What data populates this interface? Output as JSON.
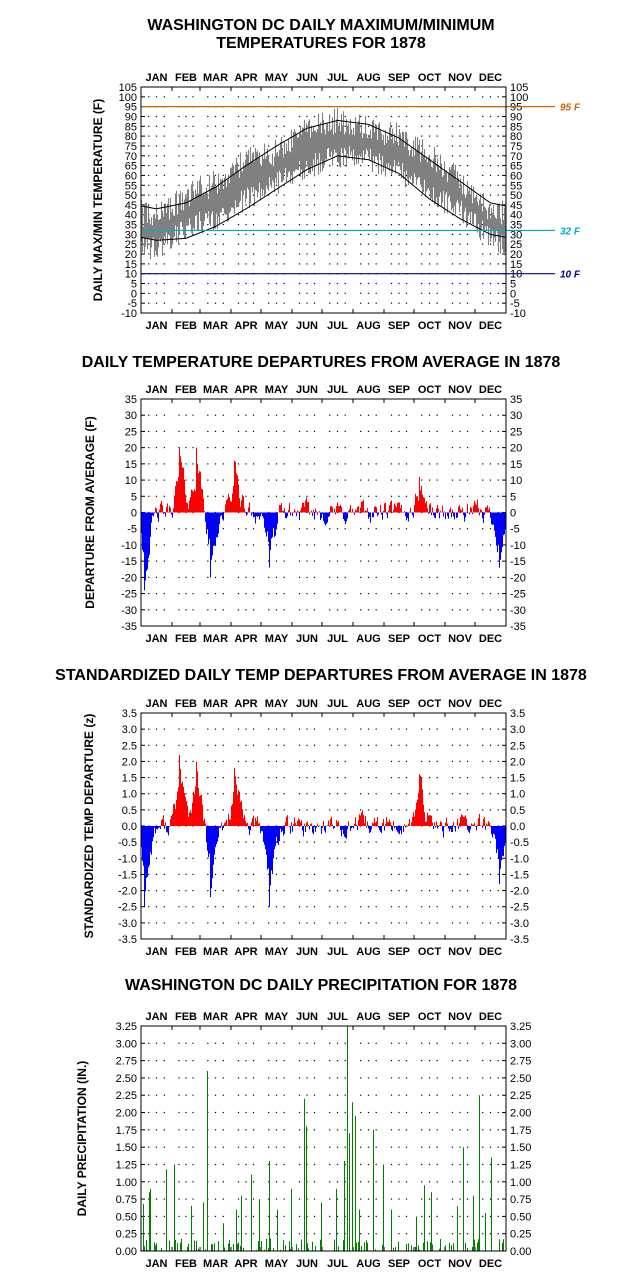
{
  "months": [
    "JAN",
    "FEB",
    "MAR",
    "APR",
    "MAY",
    "JUN",
    "JUL",
    "AUG",
    "SEP",
    "OCT",
    "NOV",
    "DEC"
  ],
  "month_lengths": [
    31,
    28,
    31,
    30,
    31,
    30,
    31,
    31,
    30,
    31,
    30,
    31
  ],
  "colors": {
    "actual": "#808080",
    "normal": "#000000",
    "above": "#ff0000",
    "below": "#0000ff",
    "precip": "#008000",
    "line95": "#cc6600",
    "line32": "#00aacc",
    "line10": "#000099"
  },
  "chart_data": [
    {
      "type": "line",
      "title": [
        "WASHINGTON DC DAILY MAXIMUM/MINIMUM",
        "TEMPERATURES FOR 1878"
      ],
      "ylabel": "DAILY MAX/MIN TEMPERATURE (F)",
      "ylim": [
        -10,
        105
      ],
      "yticks": [
        -10,
        -5,
        0,
        5,
        10,
        15,
        20,
        25,
        30,
        35,
        40,
        45,
        50,
        55,
        60,
        65,
        70,
        75,
        80,
        85,
        90,
        95,
        100,
        105
      ],
      "grid": true,
      "reference_lines": [
        {
          "value": 95,
          "label": "95 F"
        },
        {
          "value": 32,
          "label": "32 F"
        },
        {
          "value": 10,
          "label": "10 F"
        }
      ],
      "series": [
        {
          "kind": "normal high, monthly points (mid-month, smoothed)",
          "monthly": [
            43,
            46,
            54,
            65,
            75,
            84,
            88,
            86,
            79,
            68,
            57,
            46
          ]
        },
        {
          "kind": "normal low, monthly points (mid-month, smoothed)",
          "monthly": [
            27,
            28,
            34,
            43,
            53,
            63,
            70,
            68,
            61,
            48,
            38,
            30
          ]
        },
        {
          "kind": "observed daily range, approximate monthly means",
          "monthly_high": [
            40,
            50,
            56,
            68,
            72,
            84,
            88,
            84,
            80,
            70,
            58,
            42
          ],
          "monthly_low": [
            22,
            34,
            38,
            48,
            56,
            64,
            70,
            68,
            62,
            50,
            42,
            28
          ]
        }
      ]
    },
    {
      "type": "bar",
      "title": "DAILY TEMPERATURE DEPARTURES FROM AVERAGE IN 1878",
      "ylabel": "DEPARTURE FROM AVERAGE (F)",
      "ylim": [
        -35,
        35
      ],
      "yticks": [
        -35,
        -30,
        -25,
        -20,
        -15,
        -10,
        -5,
        0,
        5,
        10,
        15,
        20,
        25,
        30,
        35
      ],
      "grid": true,
      "notable_days": [
        {
          "day": 3,
          "value": -24
        },
        {
          "day": 38,
          "value": 20
        },
        {
          "day": 55,
          "value": 20
        },
        {
          "day": 69,
          "value": -20
        },
        {
          "day": 93,
          "value": 16
        },
        {
          "day": 128,
          "value": -17
        },
        {
          "day": 278,
          "value": 11
        },
        {
          "day": 358,
          "value": -17
        }
      ]
    },
    {
      "type": "bar",
      "title": "STANDARDIZED DAILY TEMP DEPARTURES FROM AVERAGE IN 1878",
      "ylabel": "STANDARDIZED TEMP DEPARTURE (z)",
      "ylim": [
        -3.5,
        3.5
      ],
      "yticks": [
        -3.5,
        -3.0,
        -2.5,
        -2.0,
        -1.5,
        -1.0,
        -0.5,
        0.0,
        0.5,
        1.0,
        1.5,
        2.0,
        2.5,
        3.0,
        3.5
      ],
      "grid": true,
      "notable_days": [
        {
          "day": 3,
          "value": -2.5
        },
        {
          "day": 38,
          "value": 2.2
        },
        {
          "day": 55,
          "value": 2.0
        },
        {
          "day": 69,
          "value": -2.2
        },
        {
          "day": 93,
          "value": 1.8
        },
        {
          "day": 128,
          "value": -2.5
        },
        {
          "day": 278,
          "value": 1.6
        },
        {
          "day": 358,
          "value": -1.8
        }
      ]
    },
    {
      "type": "bar",
      "title": "WASHINGTON DC DAILY PRECIPITATION FOR 1878",
      "ylabel": "DAILY PRECIPITATION (IN.)",
      "ylim": [
        0,
        3.25
      ],
      "yticks": [
        0.0,
        0.25,
        0.5,
        0.75,
        1.0,
        1.25,
        1.5,
        1.75,
        2.0,
        2.25,
        2.5,
        2.75,
        3.0,
        3.25
      ],
      "grid": true,
      "notable_days": [
        {
          "day": 2,
          "value": 0.68
        },
        {
          "day": 8,
          "value": 0.85
        },
        {
          "day": 9,
          "value": 0.9
        },
        {
          "day": 25,
          "value": 1.18
        },
        {
          "day": 33,
          "value": 1.25
        },
        {
          "day": 50,
          "value": 0.65
        },
        {
          "day": 62,
          "value": 0.7
        },
        {
          "day": 66,
          "value": 2.6
        },
        {
          "day": 82,
          "value": 0.4
        },
        {
          "day": 95,
          "value": 0.6
        },
        {
          "day": 100,
          "value": 0.8
        },
        {
          "day": 110,
          "value": 1.1
        },
        {
          "day": 118,
          "value": 0.75
        },
        {
          "day": 128,
          "value": 1.3
        },
        {
          "day": 136,
          "value": 0.6
        },
        {
          "day": 150,
          "value": 0.9
        },
        {
          "day": 163,
          "value": 2.2
        },
        {
          "day": 165,
          "value": 1.8
        },
        {
          "day": 180,
          "value": 0.7
        },
        {
          "day": 195,
          "value": 0.9
        },
        {
          "day": 203,
          "value": 1.3
        },
        {
          "day": 206,
          "value": 3.25
        },
        {
          "day": 208,
          "value": 1.7
        },
        {
          "day": 211,
          "value": 2.15
        },
        {
          "day": 214,
          "value": 1.95
        },
        {
          "day": 218,
          "value": 0.6
        },
        {
          "day": 232,
          "value": 1.75
        },
        {
          "day": 242,
          "value": 1.25
        },
        {
          "day": 250,
          "value": 0.6
        },
        {
          "day": 275,
          "value": 0.5
        },
        {
          "day": 283,
          "value": 0.95
        },
        {
          "day": 290,
          "value": 0.85
        },
        {
          "day": 316,
          "value": 0.65
        },
        {
          "day": 322,
          "value": 1.5
        },
        {
          "day": 332,
          "value": 0.8
        },
        {
          "day": 338,
          "value": 2.25
        },
        {
          "day": 344,
          "value": 0.55
        },
        {
          "day": 350,
          "value": 1.35
        }
      ]
    }
  ]
}
